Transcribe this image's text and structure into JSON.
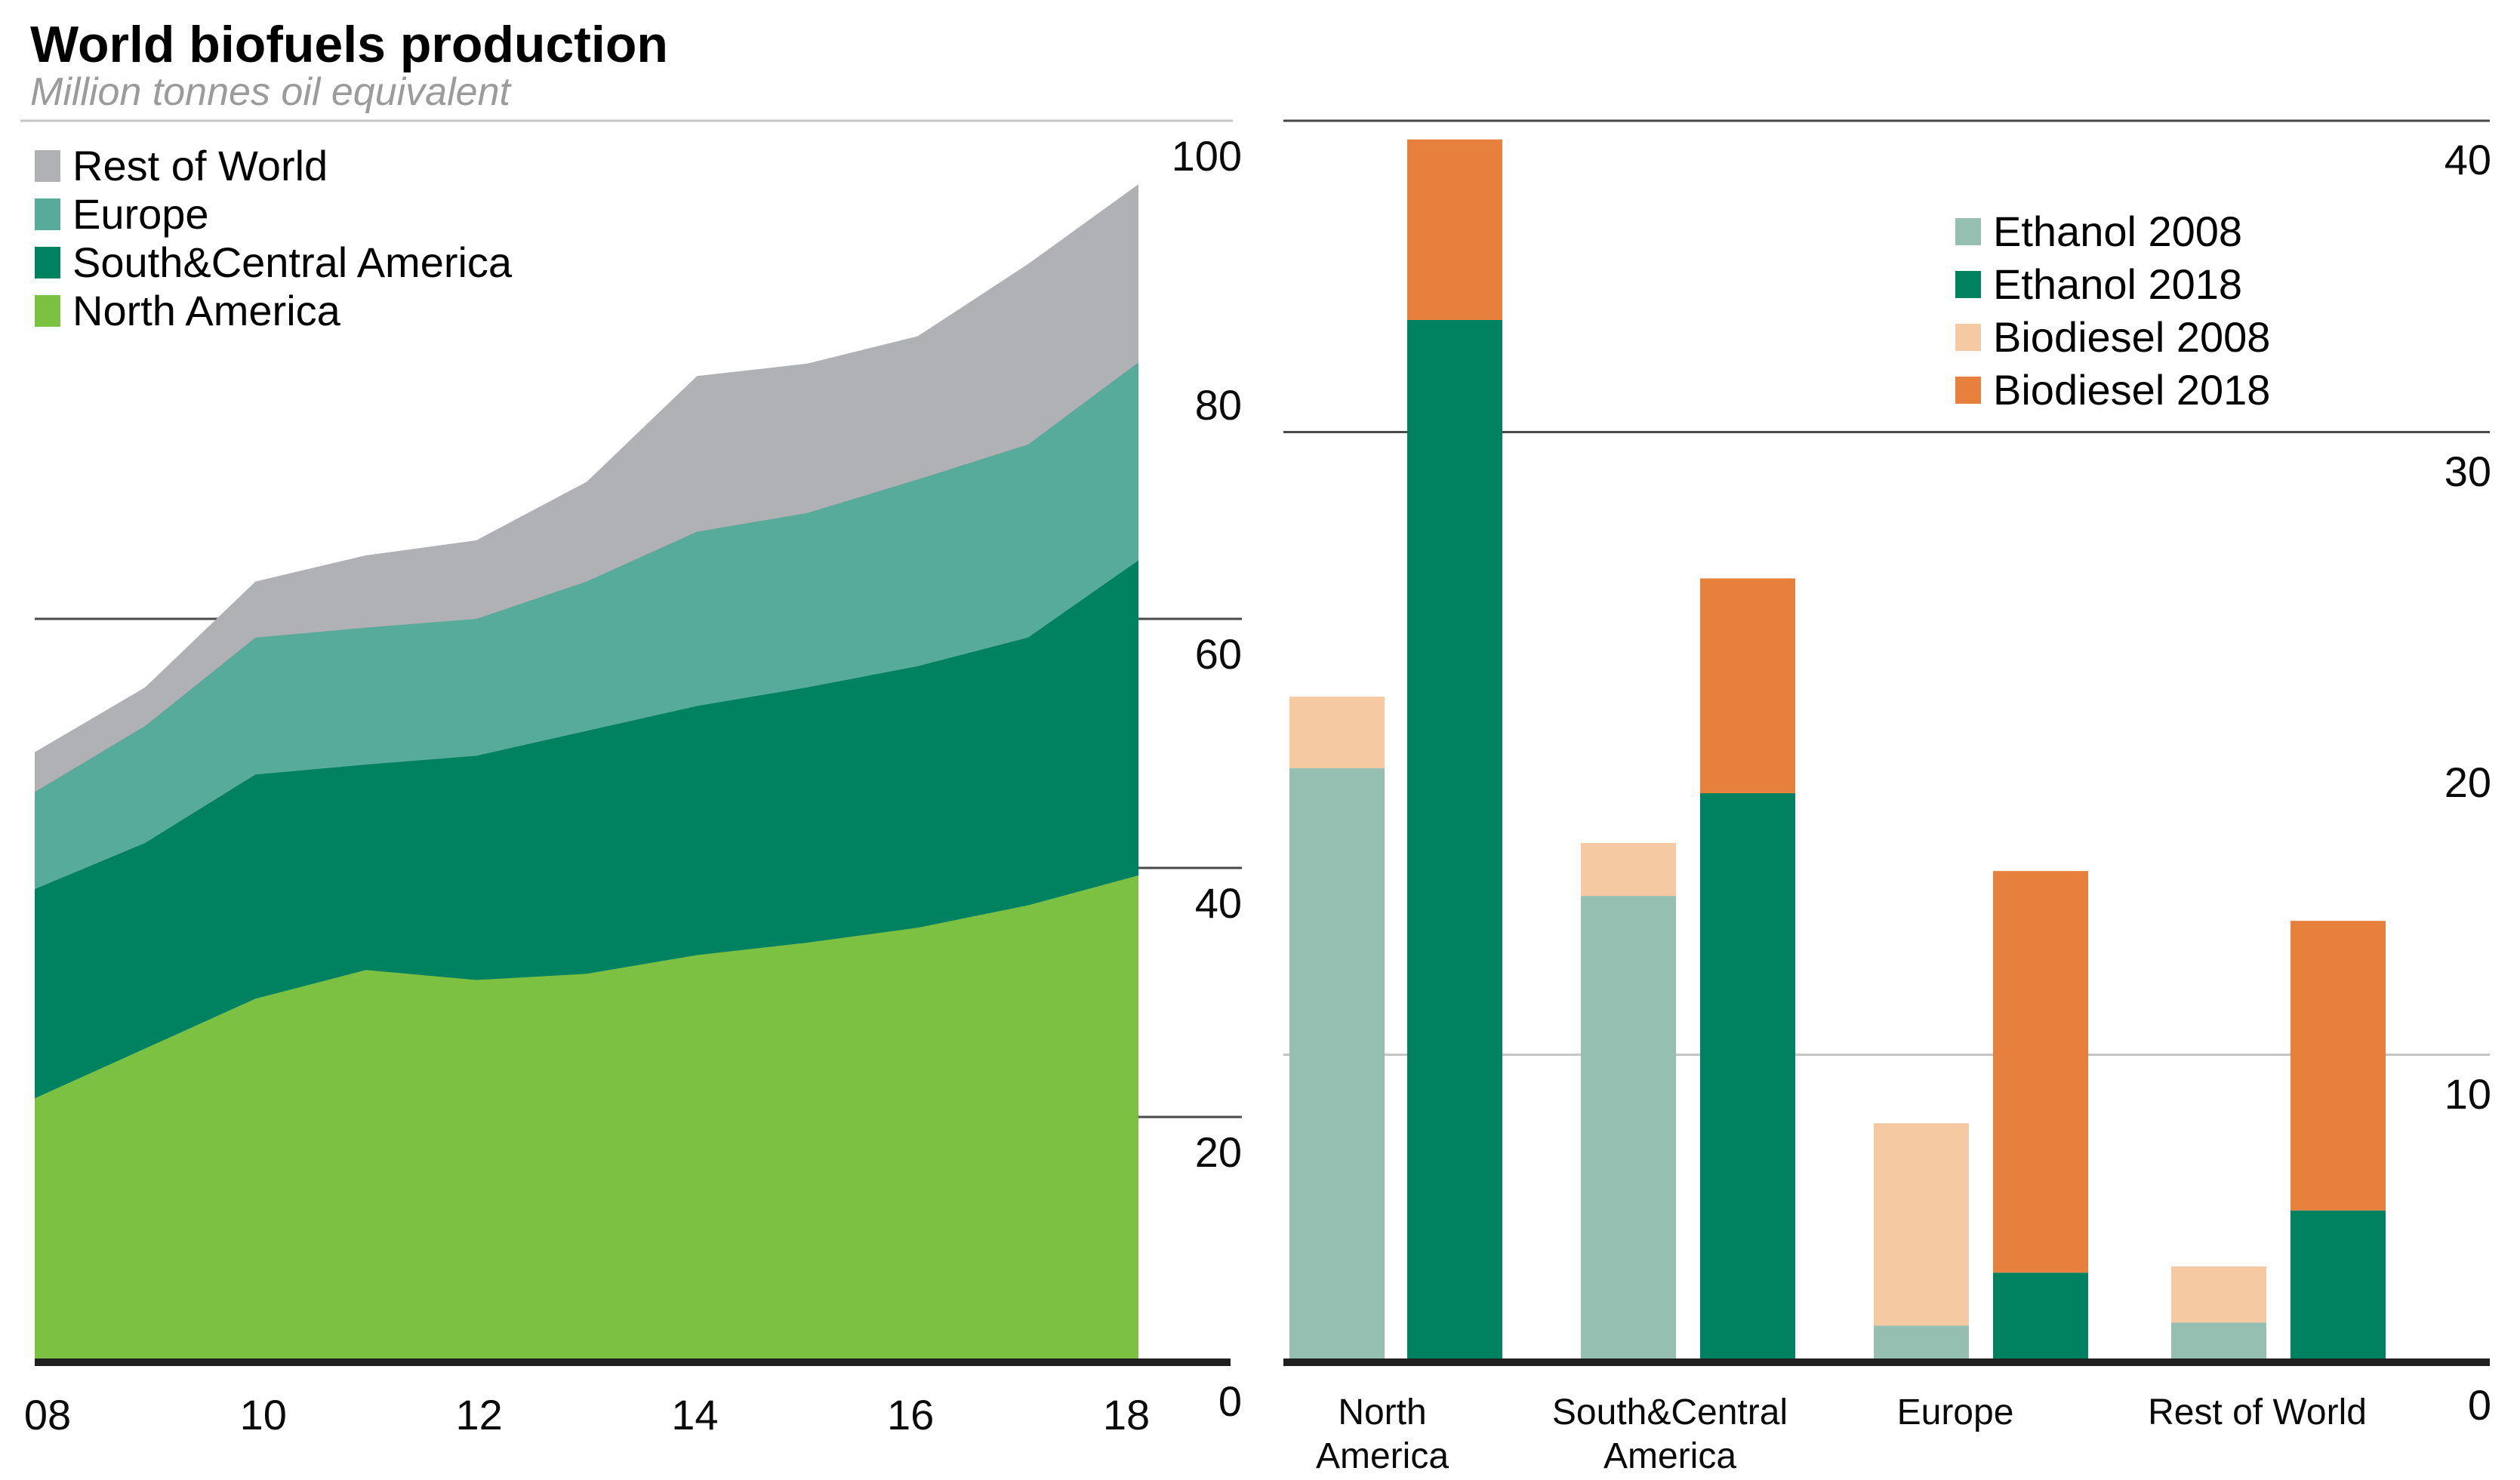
{
  "page": {
    "title": "World biofuels production",
    "subtitle": "Million tonnes oil equivalent"
  },
  "colors": {
    "north_america": "#7DC142",
    "south_central_america": "#00815F",
    "europe": "#56AB9B",
    "rest_of_world": "#AFB1B4",
    "ethanol_2008": "#94BFB1",
    "ethanol_2018": "#00815F",
    "biodiesel_2008": "#F5C9A2",
    "biodiesel_2018": "#E6803C",
    "grid_light": "#C5C5C5",
    "grid_dark": "#4A4A4A",
    "axis": "#1F1F1F",
    "subtitle_text": "#9B9B9B"
  },
  "area_legend": {
    "items": [
      {
        "label": "Rest of World",
        "color_key": "rest_of_world"
      },
      {
        "label": "Europe",
        "color_key": "europe"
      },
      {
        "label": "South&Central America",
        "color_key": "south_central_america"
      },
      {
        "label": "North America",
        "color_key": "north_america"
      }
    ]
  },
  "bar_legend": {
    "items": [
      {
        "label": "Ethanol 2008",
        "color_key": "ethanol_2008"
      },
      {
        "label": "Ethanol 2018",
        "color_key": "ethanol_2018"
      },
      {
        "label": "Biodiesel 2008",
        "color_key": "biodiesel_2008"
      },
      {
        "label": "Biodiesel 2018",
        "color_key": "biodiesel_2018"
      }
    ]
  },
  "chart_data": [
    {
      "type": "area",
      "stacked": true,
      "title": "World biofuels production",
      "units": "Million tonnes oil equivalent",
      "legend_position": "top-left",
      "grid": "horizontal",
      "x": [
        2008,
        2009,
        2010,
        2011,
        2012,
        2013,
        2014,
        2015,
        2016,
        2017,
        2018
      ],
      "x_ticks": [
        2008,
        2010,
        2012,
        2014,
        2016,
        2018
      ],
      "x_tick_labels": [
        "08",
        "10",
        "12",
        "14",
        "16",
        "18"
      ],
      "ylim": [
        0,
        100
      ],
      "y_ticks": [
        0,
        20,
        40,
        60,
        80,
        100
      ],
      "series": [
        {
          "name": "North America",
          "color_key": "north_america",
          "values": [
            21.5,
            25.5,
            29.5,
            31.8,
            31.0,
            31.5,
            33.0,
            34.0,
            35.2,
            37.0,
            39.4
          ]
        },
        {
          "name": "South&Central America",
          "color_key": "south_central_america",
          "values": [
            16.8,
            16.5,
            18.0,
            16.5,
            18.0,
            19.5,
            20.0,
            20.5,
            21.0,
            21.5,
            25.3
          ]
        },
        {
          "name": "Europe",
          "color_key": "europe",
          "values": [
            7.8,
            9.4,
            11.0,
            11.0,
            11.0,
            12.0,
            14.0,
            14.0,
            15.0,
            15.5,
            15.9
          ]
        },
        {
          "name": "Rest of World",
          "color_key": "rest_of_world",
          "values": [
            3.2,
            3.1,
            4.5,
            5.8,
            6.3,
            8.0,
            12.5,
            12.0,
            11.5,
            14.5,
            14.3
          ]
        }
      ]
    },
    {
      "type": "bar",
      "stacked": true,
      "grouped": true,
      "units": "Million tonnes oil equivalent",
      "legend_position": "top-right",
      "categories": [
        "North America",
        "South&Central America",
        "Europe",
        "Rest of World"
      ],
      "category_label_lines": [
        [
          "North",
          "America"
        ],
        [
          "South&Central",
          "America"
        ],
        [
          "Europe"
        ],
        [
          "Rest of World"
        ]
      ],
      "ylim": [
        0,
        40
      ],
      "y_ticks": [
        0,
        10,
        20,
        30,
        40
      ],
      "series": [
        {
          "name": "Ethanol 2008",
          "bar": "2008",
          "stack_order": 0,
          "color_key": "ethanol_2008",
          "values": [
            19.2,
            15.1,
            1.3,
            1.4
          ]
        },
        {
          "name": "Biodiesel 2008",
          "bar": "2008",
          "stack_order": 1,
          "color_key": "biodiesel_2008",
          "values": [
            2.3,
            1.7,
            6.5,
            1.8
          ]
        },
        {
          "name": "Ethanol 2018",
          "bar": "2018",
          "stack_order": 0,
          "color_key": "ethanol_2018",
          "values": [
            33.6,
            18.4,
            3.0,
            5.0
          ]
        },
        {
          "name": "Biodiesel 2018",
          "bar": "2018",
          "stack_order": 1,
          "color_key": "biodiesel_2018",
          "values": [
            5.8,
            6.9,
            12.9,
            9.3
          ]
        }
      ]
    }
  ]
}
